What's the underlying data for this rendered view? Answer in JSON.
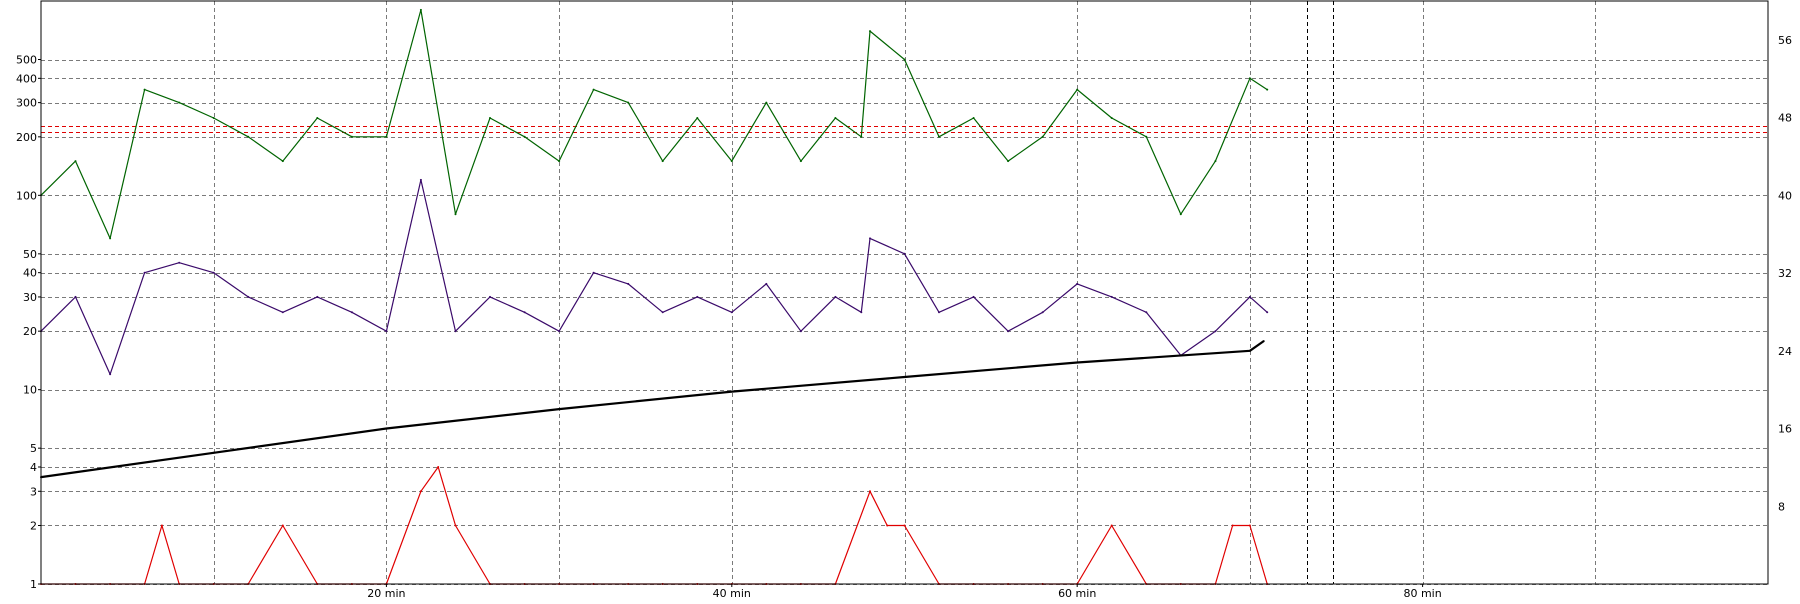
{
  "chart_data": {
    "type": "line",
    "title": "",
    "xlabel": "",
    "ylabel": "",
    "xlim": [
      0,
      100
    ],
    "ylim": [
      1,
      1000
    ],
    "y_scale": "log",
    "y2lim": [
      0,
      60
    ],
    "grid": true,
    "x_ticks": [
      {
        "value": 20,
        "label": "20 min"
      },
      {
        "value": 40,
        "label": "40 min"
      },
      {
        "value": 60,
        "label": "60 min"
      },
      {
        "value": 80,
        "label": "80 min"
      }
    ],
    "y_ticks_left": [
      {
        "value": 1,
        "label": "1"
      },
      {
        "value": 2,
        "label": "2"
      },
      {
        "value": 3,
        "label": "3"
      },
      {
        "value": 4,
        "label": "4"
      },
      {
        "value": 5,
        "label": "5"
      },
      {
        "value": 10,
        "label": "10"
      },
      {
        "value": 20,
        "label": "20"
      },
      {
        "value": 30,
        "label": "30"
      },
      {
        "value": 40,
        "label": "40"
      },
      {
        "value": 50,
        "label": "50"
      },
      {
        "value": 100,
        "label": "100"
      },
      {
        "value": 200,
        "label": "200"
      },
      {
        "value": 300,
        "label": "300"
      },
      {
        "value": 400,
        "label": "400"
      },
      {
        "value": 500,
        "label": "500"
      }
    ],
    "y_ticks_right": [
      {
        "value": 8,
        "label": "8"
      },
      {
        "value": 16,
        "label": "16"
      },
      {
        "value": 24,
        "label": "24"
      },
      {
        "value": 32,
        "label": "32"
      },
      {
        "value": 40,
        "label": "40"
      },
      {
        "value": 48,
        "label": "48"
      },
      {
        "value": 56,
        "label": "56"
      }
    ],
    "threshold_line": {
      "value": 220,
      "color": "#e00000"
    },
    "markers": [
      73.3,
      74.8
    ],
    "series": [
      {
        "color": "#006400",
        "x": [
          0,
          2,
          4,
          6,
          8,
          10,
          12,
          14,
          16,
          18,
          20,
          22,
          24,
          26,
          28,
          30,
          32,
          34,
          36,
          38,
          40,
          42,
          44,
          46,
          47.5,
          48,
          50,
          52,
          54,
          56,
          58,
          60,
          62,
          64,
          66,
          68,
          70,
          71
        ],
        "y": [
          100,
          150,
          60,
          350,
          300,
          250,
          200,
          150,
          250,
          200,
          200,
          900,
          80,
          250,
          200,
          150,
          350,
          300,
          150,
          250,
          150,
          300,
          150,
          250,
          200,
          700,
          500,
          200,
          250,
          150,
          200,
          350,
          250,
          200,
          80,
          150,
          400,
          350
        ]
      },
      {
        "color": "#3a0a6a",
        "x": [
          0,
          2,
          4,
          6,
          8,
          10,
          12,
          14,
          16,
          18,
          20,
          22,
          24,
          26,
          28,
          30,
          32,
          34,
          36,
          38,
          40,
          42,
          44,
          46,
          47.5,
          48,
          50,
          52,
          54,
          56,
          58,
          60,
          62,
          64,
          66,
          68,
          70,
          71
        ],
        "y": [
          20,
          30,
          12,
          40,
          45,
          40,
          30,
          25,
          30,
          25,
          20,
          120,
          20,
          30,
          25,
          20,
          40,
          35,
          25,
          30,
          25,
          35,
          20,
          30,
          25,
          60,
          50,
          25,
          30,
          20,
          25,
          35,
          30,
          25,
          15,
          20,
          30,
          25
        ]
      },
      {
        "color": "#e00000",
        "x": [
          0,
          2,
          4,
          6,
          7,
          8,
          10,
          12,
          14,
          16,
          18,
          20,
          22,
          23,
          24,
          26,
          28,
          30,
          32,
          34,
          36,
          38,
          40,
          42,
          44,
          46,
          48,
          49,
          50,
          52,
          54,
          56,
          58,
          60,
          62,
          64,
          66,
          68,
          69,
          70,
          71
        ],
        "y": [
          1,
          1,
          1,
          1,
          2,
          1,
          1,
          1,
          2,
          1,
          1,
          1,
          3,
          4,
          2,
          1,
          1,
          1,
          1,
          1,
          1,
          1,
          1,
          1,
          1,
          1,
          3,
          2,
          2,
          1,
          1,
          1,
          1,
          1,
          2,
          1,
          1,
          1,
          2,
          2,
          1
        ]
      },
      {
        "color": "#000000",
        "y_axis": "right",
        "x": [
          0,
          10,
          20,
          30,
          40,
          50,
          60,
          70,
          70.8
        ],
        "y": [
          11,
          13.5,
          16,
          18,
          19.8,
          21.3,
          22.8,
          24,
          25
        ]
      }
    ]
  }
}
